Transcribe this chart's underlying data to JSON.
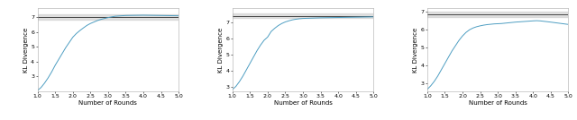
{
  "subplot1": {
    "x": [
      1.0,
      1.1,
      1.2,
      1.3,
      1.4,
      1.5,
      1.6,
      1.7,
      1.8,
      1.9,
      2.0,
      2.1,
      2.2,
      2.3,
      2.4,
      2.5,
      2.6,
      2.7,
      2.8,
      2.9,
      3.0,
      3.2,
      3.5,
      4.0,
      4.5,
      5.0
    ],
    "y": [
      2.05,
      2.25,
      2.55,
      2.9,
      3.3,
      3.75,
      4.15,
      4.55,
      4.95,
      5.3,
      5.65,
      5.9,
      6.1,
      6.28,
      6.45,
      6.58,
      6.68,
      6.78,
      6.86,
      6.92,
      6.98,
      7.07,
      7.12,
      7.14,
      7.12,
      7.1
    ],
    "ref_line": 7.0,
    "ref_band_low": 6.83,
    "ref_band_high": 7.17,
    "ylim": [
      2.0,
      7.6
    ],
    "yticks": [
      3,
      4,
      5,
      6,
      7
    ],
    "xlim": [
      1.0,
      5.0
    ],
    "xticks": [
      1.0,
      1.5,
      2.0,
      2.5,
      3.0,
      3.5,
      4.0,
      4.5,
      5.0
    ],
    "xlabel": "Number of Rounds",
    "ylabel": "KL Divergence"
  },
  "subplot2": {
    "x": [
      1.0,
      1.1,
      1.2,
      1.3,
      1.4,
      1.5,
      1.6,
      1.7,
      1.8,
      1.9,
      2.0,
      2.1,
      2.2,
      2.3,
      2.4,
      2.5,
      2.6,
      2.7,
      2.8,
      2.9,
      3.0,
      3.5,
      4.0,
      4.5,
      5.0
    ],
    "y": [
      2.8,
      3.0,
      3.3,
      3.65,
      4.05,
      4.45,
      4.85,
      5.25,
      5.6,
      5.9,
      6.1,
      6.45,
      6.65,
      6.82,
      6.95,
      7.05,
      7.12,
      7.18,
      7.22,
      7.25,
      7.27,
      7.31,
      7.33,
      7.35,
      7.37
    ],
    "ref_line": 7.42,
    "ref_band_low": 7.28,
    "ref_band_high": 7.58,
    "ylim": [
      2.7,
      7.9
    ],
    "yticks": [
      3,
      4,
      5,
      6,
      7
    ],
    "xlim": [
      1.0,
      5.0
    ],
    "xticks": [
      1.0,
      1.5,
      2.0,
      2.5,
      3.0,
      3.5,
      4.0,
      4.5,
      5.0
    ],
    "xlabel": "Number of Rounds",
    "ylabel": "KL Divergence"
  },
  "subplot3": {
    "x": [
      1.0,
      1.1,
      1.2,
      1.3,
      1.4,
      1.5,
      1.6,
      1.7,
      1.8,
      1.9,
      2.0,
      2.1,
      2.2,
      2.3,
      2.4,
      2.5,
      2.6,
      2.7,
      2.8,
      2.9,
      3.0,
      3.1,
      3.2,
      3.5,
      4.0,
      4.1,
      4.2,
      4.5,
      5.0
    ],
    "y": [
      2.65,
      2.85,
      3.1,
      3.4,
      3.75,
      4.1,
      4.45,
      4.8,
      5.1,
      5.4,
      5.65,
      5.85,
      6.0,
      6.1,
      6.17,
      6.22,
      6.26,
      6.29,
      6.31,
      6.33,
      6.34,
      6.35,
      6.37,
      6.43,
      6.5,
      6.51,
      6.5,
      6.43,
      6.3
    ],
    "ref_line": 6.88,
    "ref_band_low": 6.72,
    "ref_band_high": 7.04,
    "ylim": [
      2.55,
      7.2
    ],
    "yticks": [
      3,
      4,
      5,
      6,
      7
    ],
    "xlim": [
      1.0,
      5.0
    ],
    "xticks": [
      1.0,
      1.5,
      2.0,
      2.5,
      3.0,
      3.5,
      4.0,
      4.5,
      5.0
    ],
    "xlabel": "Number of Rounds",
    "ylabel": "KL Divergence"
  },
  "line_color": "#4e9ec2",
  "ref_line_color": "#444444",
  "ref_band_color": "#c8c8c8",
  "background_color": "#ffffff",
  "tick_fontsize": 4.5,
  "label_fontsize": 5.0,
  "linewidth": 0.7,
  "ref_linewidth": 0.7
}
